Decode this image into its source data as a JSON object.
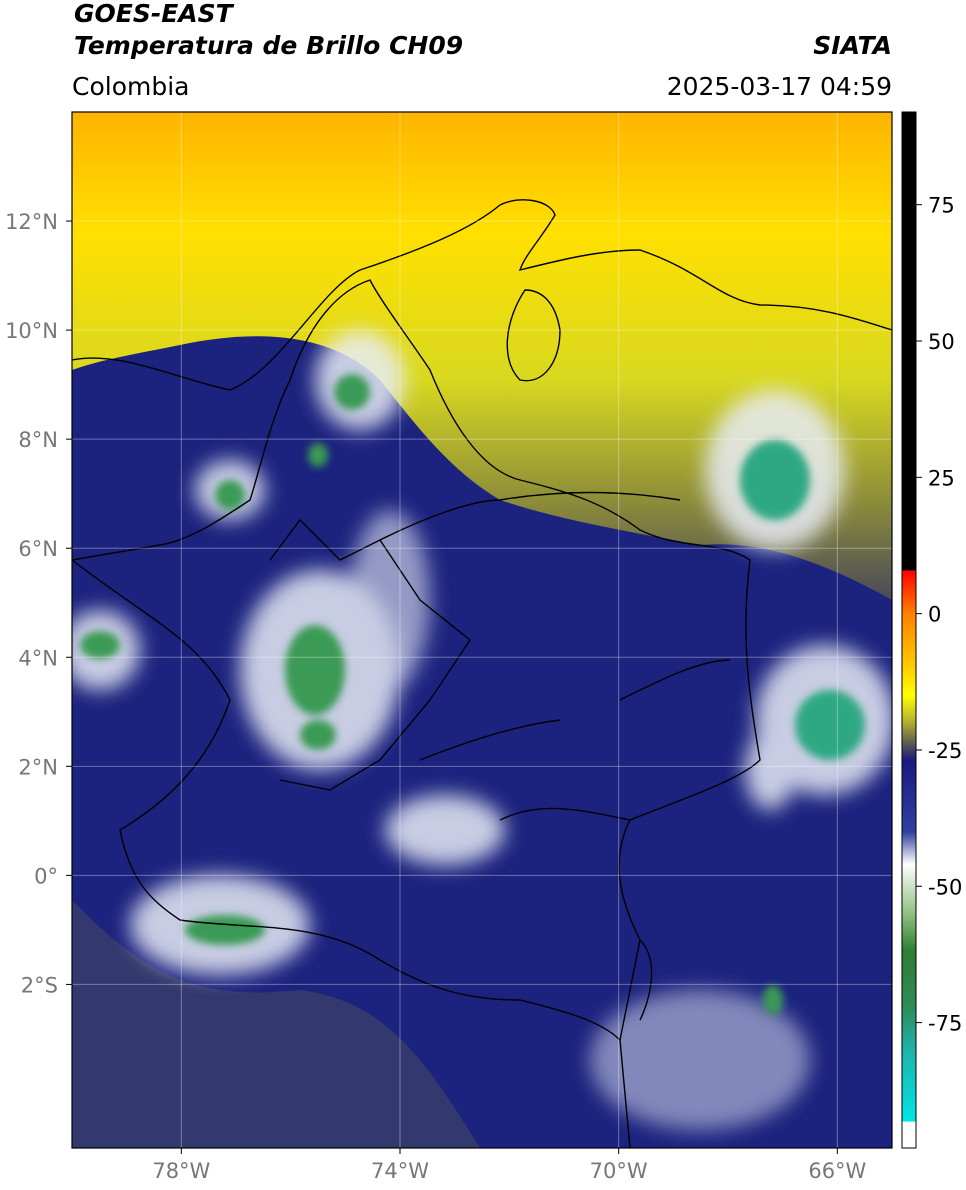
{
  "header": {
    "title": "GOES-EAST",
    "subtitle": "Temperatura de Brillo CH09",
    "source": "SIATA",
    "region": "Colombia",
    "timestamp": "2025-03-17 04:59"
  },
  "map": {
    "lonlim": [
      -80,
      -65
    ],
    "latlim": [
      -5,
      14
    ],
    "xticks": [
      {
        "value": -78,
        "label": "78°W"
      },
      {
        "value": -74,
        "label": "74°W"
      },
      {
        "value": -70,
        "label": "70°W"
      },
      {
        "value": -66,
        "label": "66°W"
      }
    ],
    "yticks": [
      {
        "value": 12,
        "label": "12°N"
      },
      {
        "value": 10,
        "label": "10°N"
      },
      {
        "value": 8,
        "label": "8°N"
      },
      {
        "value": 6,
        "label": "6°N"
      },
      {
        "value": 4,
        "label": "4°N"
      },
      {
        "value": 2,
        "label": "2°N"
      },
      {
        "value": 0,
        "label": "0°"
      },
      {
        "value": -2,
        "label": "2°S"
      }
    ],
    "grid": true
  },
  "colorbar": {
    "lim": [
      -98,
      92
    ],
    "ticks": [
      75,
      50,
      25,
      0,
      -25,
      -50,
      -75
    ]
  }
}
